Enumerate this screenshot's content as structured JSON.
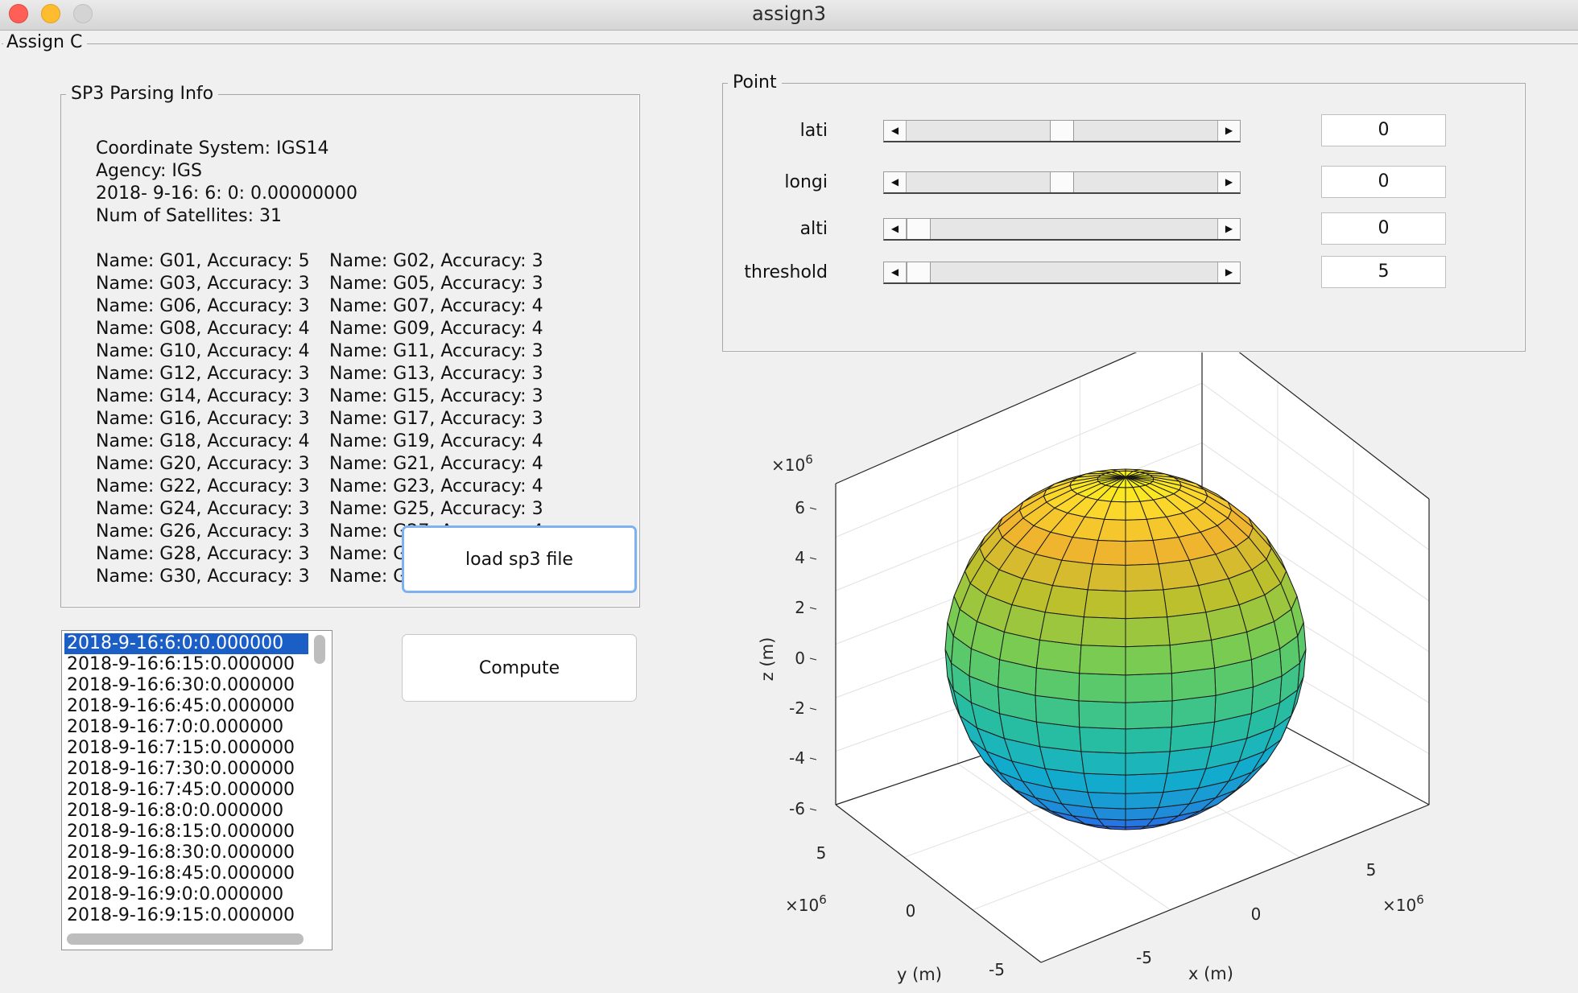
{
  "window": {
    "title": "assign3"
  },
  "outer_panel": {
    "title": "Assign C"
  },
  "sp3_panel": {
    "title": "SP3 Parsing Info",
    "coordinate_system": "Coordinate System: IGS14",
    "agency": "Agency:  IGS",
    "epoch": "2018- 9-16: 6: 0: 0.00000000",
    "num_satellites": "Num of Satellites: 31",
    "accuracy_rows": [
      [
        "Name: G01, Accuracy:   5",
        "Name: G02, Accuracy:   3"
      ],
      [
        "Name: G03, Accuracy:   3",
        "Name: G05, Accuracy:   3"
      ],
      [
        "Name: G06, Accuracy:   3",
        "Name: G07, Accuracy:   4"
      ],
      [
        "Name: G08, Accuracy:   4",
        "Name: G09, Accuracy:   4"
      ],
      [
        "Name: G10, Accuracy:   4",
        "Name: G11, Accuracy:   3"
      ],
      [
        "Name: G12, Accuracy:   3",
        "Name: G13, Accuracy:   3"
      ],
      [
        "Name: G14, Accuracy:   3",
        "Name: G15, Accuracy:   3"
      ],
      [
        "Name: G16, Accuracy:   3",
        "Name: G17, Accuracy:   3"
      ],
      [
        "Name: G18, Accuracy:   4",
        "Name: G19, Accuracy:   4"
      ],
      [
        "Name: G20, Accuracy:   3",
        "Name: G21, Accuracy:   4"
      ],
      [
        "Name: G22, Accuracy:   3",
        "Name: G23, Accuracy:   4"
      ],
      [
        "Name: G24, Accuracy:   3",
        "Name: G25, Accuracy:   3"
      ],
      [
        "Name: G26, Accuracy:   3",
        "Name: G27, Accuracy:   4"
      ],
      [
        "Name: G28, Accuracy:   3",
        "Name: G29, Accuracy:   4"
      ],
      [
        "Name: G30, Accuracy:   3",
        "Name: G31, Accuracy:   3"
      ]
    ]
  },
  "point_panel": {
    "title": "Point",
    "sliders": [
      {
        "label": "lati",
        "value": "0",
        "fraction": 0.5
      },
      {
        "label": "longi",
        "value": "0",
        "fraction": 0.5
      },
      {
        "label": "alti",
        "value": "0",
        "fraction": 0.0
      },
      {
        "label": "threshold",
        "value": "5",
        "fraction": 0.0
      }
    ]
  },
  "epoch_list": {
    "selected_index": 0,
    "items": [
      "2018-9-16:6:0:0.000000",
      "2018-9-16:6:15:0.000000",
      "2018-9-16:6:30:0.000000",
      "2018-9-16:6:45:0.000000",
      "2018-9-16:7:0:0.000000",
      "2018-9-16:7:15:0.000000",
      "2018-9-16:7:30:0.000000",
      "2018-9-16:7:45:0.000000",
      "2018-9-16:8:0:0.000000",
      "2018-9-16:8:15:0.000000",
      "2018-9-16:8:30:0.000000",
      "2018-9-16:8:45:0.000000",
      "2018-9-16:9:0:0.000000",
      "2018-9-16:9:15:0.000000"
    ]
  },
  "buttons": {
    "load": "load sp3 file",
    "compute": "Compute"
  },
  "plot": {
    "z_label": "z (m)",
    "y_label": "y (m)",
    "x_label": "x (m)",
    "exponent": "×10",
    "exponent_power": "6",
    "z_ticks": [
      "6",
      "4",
      "2",
      "0",
      "-2",
      "-4",
      "-6"
    ],
    "y_ticks": [
      "5",
      "0",
      "-5"
    ],
    "x_ticks": [
      "5",
      "0",
      "-5"
    ],
    "colormap": [
      "#3e26a8",
      "#2c5bf0",
      "#1e8bd9",
      "#11aecd",
      "#2cc09a",
      "#6ccd5a",
      "#b8c12d",
      "#f1b52e",
      "#fcdc2b",
      "#f9fb0e"
    ]
  }
}
